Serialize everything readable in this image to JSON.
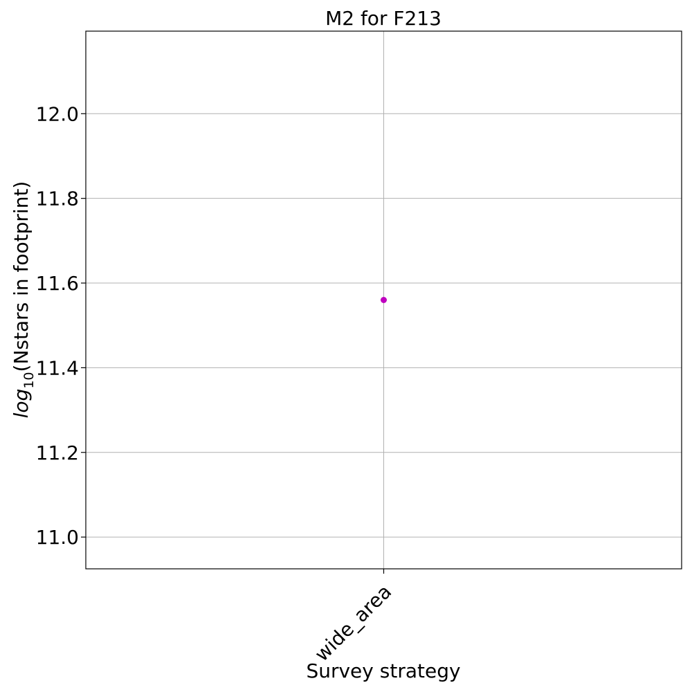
{
  "chart_data": {
    "type": "scatter",
    "title": "M2 for F213",
    "xlabel": "Survey strategy",
    "ylabel": {
      "prefix": "log",
      "subscript": "10",
      "suffix": "(Nstars in footprint)"
    },
    "categories": [
      "wide_area"
    ],
    "values": [
      11.56
    ],
    "ylim": [
      10.925,
      12.195
    ],
    "yticks": [
      11.0,
      11.2,
      11.4,
      11.6,
      11.8,
      12.0
    ],
    "ytick_labels": [
      "11.0",
      "11.2",
      "11.4",
      "11.6",
      "11.8",
      "12.0"
    ],
    "grid": true,
    "marker_color": "#bf00bf"
  }
}
